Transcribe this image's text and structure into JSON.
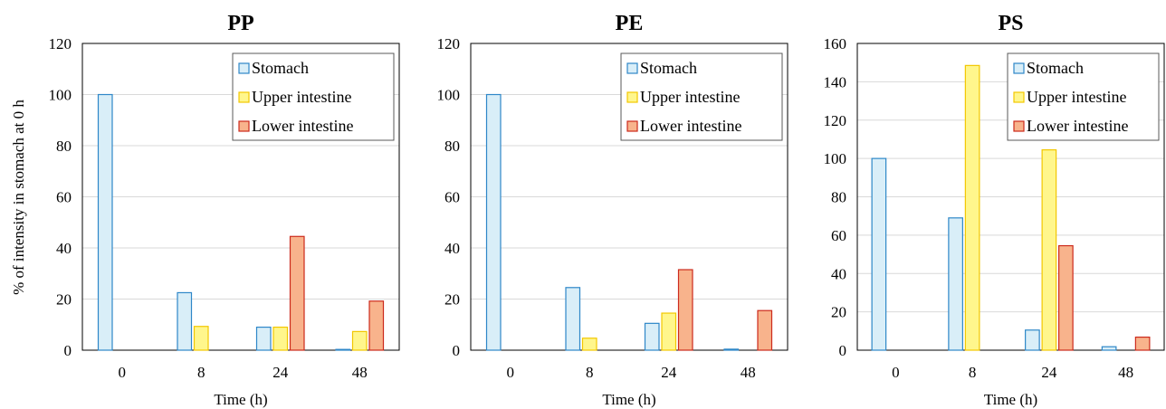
{
  "figure": {
    "ylabel": "% of intensity in stomach at 0 h",
    "xlabel": "Time (h)"
  },
  "colors": {
    "stomach_fill": "#d9eef8",
    "stomach_stroke": "#2e87c8",
    "upper_fill": "#fff68c",
    "upper_stroke": "#f2c700",
    "lower_fill": "#f8b38c",
    "lower_stroke": "#cc2a1c",
    "grid": "#d9d9d9",
    "axis": "#000000"
  },
  "chart_data": [
    {
      "type": "bar",
      "title": "PP",
      "categories": [
        "0",
        "8",
        "24",
        "48"
      ],
      "ylim": [
        0,
        120
      ],
      "yticks": [
        0,
        20,
        40,
        60,
        80,
        100,
        120
      ],
      "grid": true,
      "legend_position": "top-right",
      "xlabel": "Time (h)",
      "ylabel": "% of intensity in stomach at 0 h",
      "series": [
        {
          "name": "Stomach",
          "values": [
            100,
            22.5,
            9,
            0.3
          ]
        },
        {
          "name": "Upper intestine",
          "values": [
            0,
            9.3,
            9,
            7.3
          ]
        },
        {
          "name": "Lower intestine",
          "values": [
            0,
            0,
            44.5,
            19.2
          ]
        }
      ]
    },
    {
      "type": "bar",
      "title": "PE",
      "categories": [
        "0",
        "8",
        "24",
        "48"
      ],
      "ylim": [
        0,
        120
      ],
      "yticks": [
        0,
        20,
        40,
        60,
        80,
        100,
        120
      ],
      "grid": true,
      "legend_position": "top-right",
      "xlabel": "Time (h)",
      "series": [
        {
          "name": "Stomach",
          "values": [
            100,
            24.5,
            10.5,
            0.4
          ]
        },
        {
          "name": "Upper intestine",
          "values": [
            0,
            4.7,
            14.5,
            0
          ]
        },
        {
          "name": "Lower intestine",
          "values": [
            0,
            0,
            31.5,
            15.5
          ]
        }
      ]
    },
    {
      "type": "bar",
      "title": "PS",
      "categories": [
        "0",
        "8",
        "24",
        "48"
      ],
      "ylim": [
        0,
        160
      ],
      "yticks": [
        0,
        20,
        40,
        60,
        80,
        100,
        120,
        140,
        160
      ],
      "grid": true,
      "legend_position": "top-right",
      "xlabel": "Time (h)",
      "series": [
        {
          "name": "Stomach",
          "values": [
            100,
            69,
            10.5,
            1.8
          ]
        },
        {
          "name": "Upper intestine",
          "values": [
            0,
            148.5,
            104.5,
            0
          ]
        },
        {
          "name": "Lower intestine",
          "values": [
            0,
            0,
            54.5,
            6.8
          ]
        }
      ]
    }
  ]
}
